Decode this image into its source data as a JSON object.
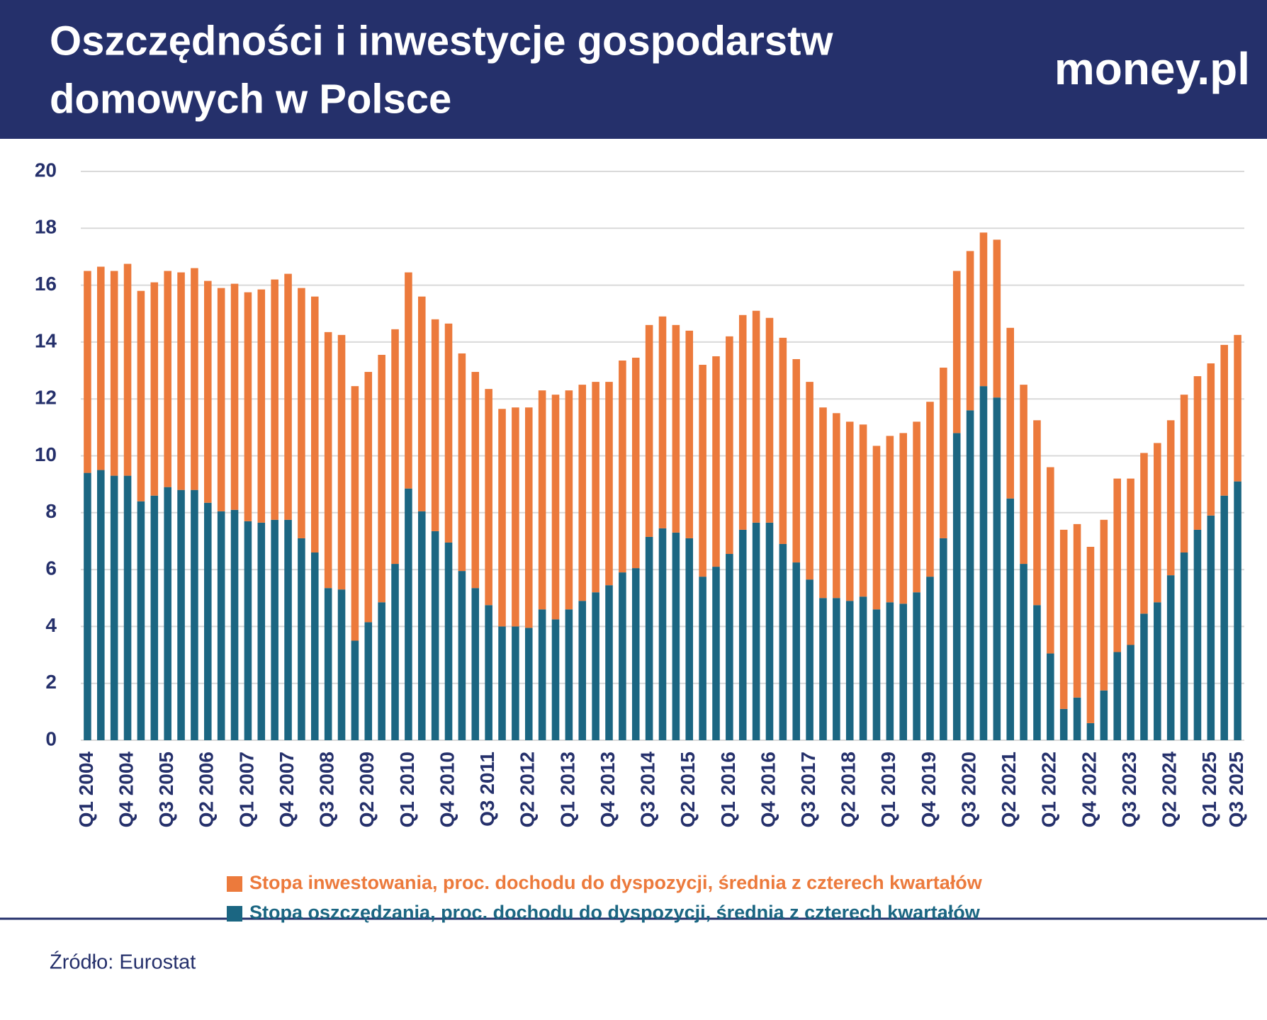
{
  "chart_data": {
    "type": "stacked_bar",
    "title": [
      "Oszczędności i inwestycje gospodarstw",
      "domowych w Polsce"
    ],
    "logo": "money.pl",
    "source": "Źródło: Eurostat",
    "categories": [
      "Q1 2004",
      null,
      null,
      "Q4 2004",
      null,
      null,
      "Q3 2005",
      null,
      null,
      "Q2 2006",
      null,
      null,
      "Q1 2007",
      null,
      null,
      "Q4 2007",
      null,
      null,
      "Q3 2008",
      null,
      null,
      "Q2 2009",
      null,
      null,
      "Q1 2010",
      null,
      null,
      "Q4 2010",
      null,
      null,
      "Q3 2011",
      null,
      null,
      "Q2 2012",
      null,
      null,
      "Q1 2013",
      null,
      null,
      "Q4 2013",
      null,
      null,
      "Q3 2014",
      null,
      null,
      "Q2 2015",
      null,
      null,
      "Q1 2016",
      null,
      null,
      "Q4 2016",
      null,
      null,
      "Q3 2017",
      null,
      null,
      "Q2 2018",
      null,
      null,
      "Q1 2019",
      null,
      null,
      "Q4 2019",
      null,
      null,
      "Q3 2020",
      null,
      null,
      "Q2 2021",
      null,
      null,
      "Q1 2022",
      null,
      null,
      "Q4 2022",
      null,
      null,
      "Q3 2023",
      null,
      null,
      "Q2 2024",
      null,
      null,
      "Q1 2025",
      null,
      "Q3 2025"
    ],
    "series": [
      {
        "name": "Stopa inwestowania, proc. dochodu do dyspozycji, średnia z czterech kwartałów",
        "color": "#ec7a3c",
        "values": [
          7.1,
          7.15,
          7.2,
          7.45,
          7.4,
          7.5,
          7.6,
          7.65,
          7.8,
          7.8,
          7.85,
          7.95,
          8.05,
          8.2,
          8.45,
          8.65,
          8.8,
          9.0,
          9.0,
          8.95,
          8.95,
          8.8,
          8.7,
          8.25,
          7.6,
          7.55,
          7.45,
          7.7,
          7.65,
          7.6,
          7.6,
          7.65,
          7.7,
          7.75,
          7.7,
          7.9,
          7.7,
          7.6,
          7.4,
          7.15,
          7.45,
          7.4,
          7.45,
          7.45,
          7.3,
          7.3,
          7.45,
          7.4,
          7.65,
          7.55,
          7.45,
          7.2,
          7.25,
          7.15,
          6.95,
          6.7,
          6.5,
          6.3,
          6.05,
          5.75,
          5.85,
          6.0,
          6.0,
          6.15,
          6.0,
          5.7,
          5.6,
          5.4,
          5.55,
          6.0,
          6.3,
          6.5,
          6.55,
          6.3,
          6.1,
          6.2,
          6.0,
          6.1,
          5.85,
          5.65,
          5.6,
          5.45,
          5.55,
          5.4,
          5.35,
          5.3,
          5.15
        ]
      },
      {
        "name": "Stopa oszczędzania, proc. dochodu do dyspozycji, średnia z czterech kwartałów",
        "color": "#1b6682",
        "values": [
          9.4,
          9.5,
          9.3,
          9.3,
          8.4,
          8.6,
          8.9,
          8.8,
          8.8,
          8.35,
          8.05,
          8.1,
          7.7,
          7.65,
          7.75,
          7.75,
          7.1,
          6.6,
          5.35,
          5.3,
          3.5,
          4.15,
          4.85,
          6.2,
          8.85,
          8.05,
          7.35,
          6.95,
          5.95,
          5.35,
          4.75,
          4.0,
          4.0,
          3.95,
          4.6,
          4.25,
          4.6,
          4.9,
          5.2,
          5.45,
          5.9,
          6.05,
          7.15,
          7.45,
          7.3,
          7.1,
          5.75,
          6.1,
          6.55,
          7.4,
          7.65,
          7.65,
          6.9,
          6.25,
          5.65,
          5.0,
          5.0,
          4.9,
          5.05,
          4.6,
          4.85,
          4.8,
          5.2,
          5.75,
          7.1,
          10.8,
          11.6,
          12.45,
          12.05,
          8.5,
          6.2,
          4.75,
          3.05,
          1.1,
          1.5,
          0.6,
          1.75,
          3.1,
          3.35,
          4.45,
          4.85,
          5.8,
          6.6,
          7.4,
          7.9,
          8.6,
          9.1
        ]
      }
    ],
    "ylim": [
      0,
      20
    ],
    "yticks": [
      0,
      2,
      4,
      6,
      8,
      10,
      12,
      14,
      16,
      18,
      20
    ],
    "grid": true
  }
}
